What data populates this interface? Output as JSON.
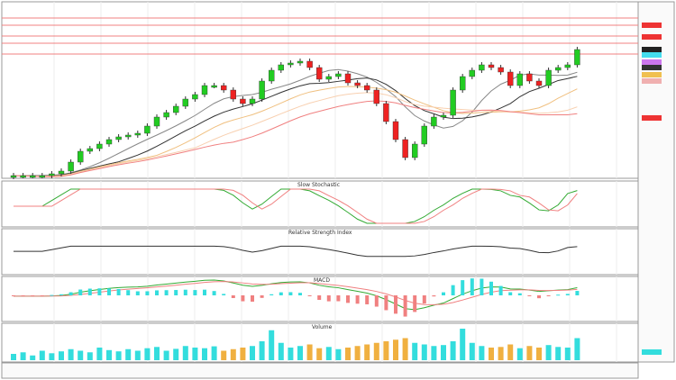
{
  "chart_data": [
    {
      "type": "candlestick",
      "panel": "price",
      "closes": [
        52.5,
        52.5,
        52.5,
        52.5,
        53.5,
        55,
        60,
        66,
        67.5,
        70,
        72.5,
        74,
        75,
        76,
        80,
        85,
        87.5,
        91,
        95,
        97.5,
        102.5,
        102.5,
        100,
        95,
        92.5,
        95,
        105,
        111,
        114,
        115,
        116,
        112.5,
        106,
        107.5,
        109,
        104,
        102.5,
        100,
        92.5,
        82.5,
        72.5,
        62.5,
        70,
        80,
        85,
        86,
        100,
        107.5,
        111,
        114,
        112.5,
        110,
        102.5,
        109,
        105,
        102.5,
        111,
        112.5,
        114,
        122.5
      ],
      "moving_averages": [
        10,
        20,
        50,
        100,
        200
      ],
      "colors": {
        "up": "#22cc22",
        "down": "#ee2222"
      }
    },
    {
      "type": "line",
      "panel": "stochastic",
      "title": "Slow Stochastic"
    },
    {
      "type": "line",
      "panel": "rsi",
      "title": "Relative Strength Index"
    },
    {
      "type": "bar",
      "panel": "macd",
      "title": "MACD"
    },
    {
      "type": "bar",
      "panel": "volume",
      "title": "Volume",
      "values": [
        20,
        25,
        15,
        30,
        22,
        28,
        35,
        30,
        25,
        40,
        32,
        28,
        35,
        30,
        38,
        42,
        30,
        36,
        45,
        40,
        38,
        44,
        30,
        35,
        40,
        45,
        60,
        95,
        55,
        40,
        45,
        50,
        38,
        42,
        35,
        40,
        45,
        50,
        55,
        60,
        65,
        70,
        55,
        50,
        45,
        48,
        60,
        100,
        55,
        45,
        40,
        42,
        50,
        38,
        45,
        40,
        48,
        42,
        40,
        70
      ],
      "colors": {
        "up": "#33dddd",
        "down": "#f0b040"
      }
    }
  ]
}
